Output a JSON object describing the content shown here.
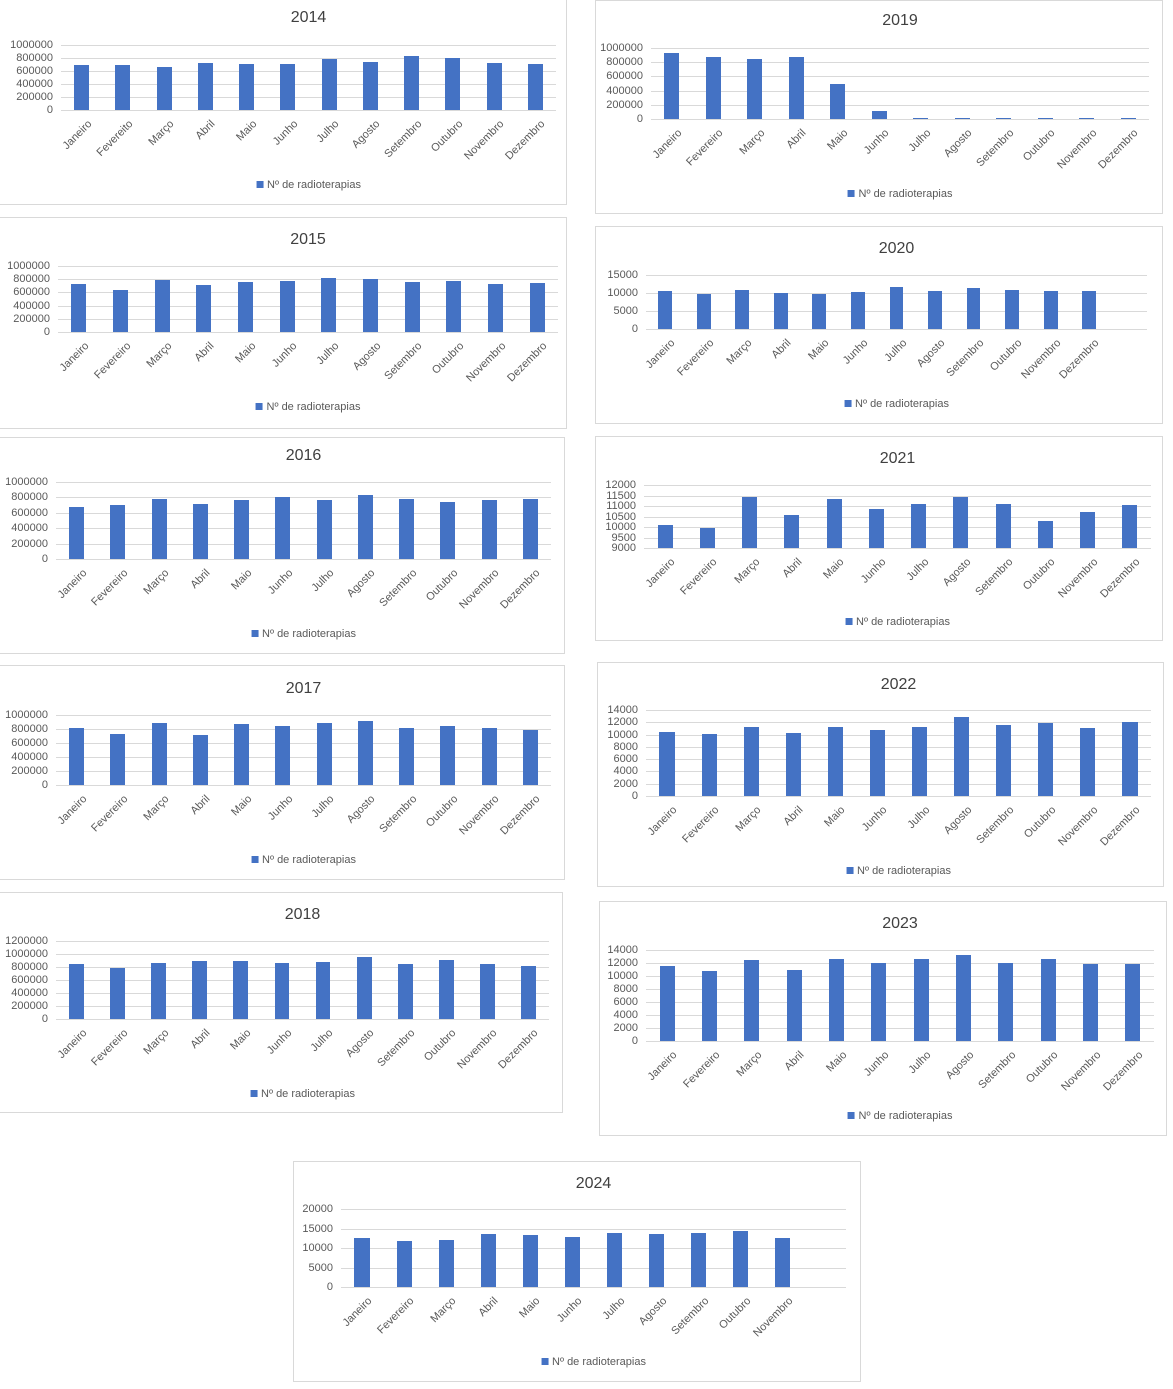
{
  "chart_data": [
    {
      "type": "bar",
      "title": "2014",
      "categories": [
        "Janeiro",
        "Fevereito",
        "Março",
        "Abril",
        "Maio",
        "Junho",
        "Julho",
        "Agosto",
        "Setembro",
        "Outubro",
        "Novembro",
        "Dezembro"
      ],
      "values": [
        700000,
        685000,
        655000,
        730000,
        715000,
        715000,
        790000,
        745000,
        835000,
        805000,
        730000,
        715000
      ],
      "ylim": [
        0,
        1000000
      ],
      "yticks": [
        "0",
        "200000",
        "400000",
        "600000",
        "800000",
        "1000000"
      ],
      "legend": "Nº de radioterapias",
      "color": "#4472c4"
    },
    {
      "type": "bar",
      "title": "2015",
      "categories": [
        "Janeiro",
        "Fevereiro",
        "Março",
        "Abril",
        "Maio",
        "Junho",
        "Julho",
        "Agosto",
        "Setembro",
        "Outubro",
        "Novembro",
        "Dezembro"
      ],
      "values": [
        730000,
        640000,
        790000,
        715000,
        760000,
        775000,
        820000,
        800000,
        760000,
        775000,
        730000,
        745000
      ],
      "ylim": [
        0,
        1000000
      ],
      "yticks": [
        "0",
        "200000",
        "400000",
        "600000",
        "800000",
        "1000000"
      ],
      "legend": "Nº de radioterapias",
      "color": "#4472c4"
    },
    {
      "type": "bar",
      "title": "2016",
      "categories": [
        "Janeiro",
        "Fevereiro",
        "Março",
        "Abril",
        "Maio",
        "Junho",
        "Julho",
        "Agosto",
        "Setembro",
        "Outubro",
        "Novembro",
        "Dezembro"
      ],
      "values": [
        680000,
        695000,
        785000,
        720000,
        770000,
        805000,
        760000,
        835000,
        785000,
        745000,
        770000,
        785000
      ],
      "ylim": [
        0,
        1000000
      ],
      "yticks": [
        "0",
        "200000",
        "400000",
        "600000",
        "800000",
        "1000000"
      ],
      "legend": "Nº de radioterapias",
      "color": "#4472c4"
    },
    {
      "type": "bar",
      "title": "2017",
      "categories": [
        "Janeiro",
        "Fevereiro",
        "Março",
        "Abril",
        "Maio",
        "Junho",
        "Julho",
        "Agosto",
        "Setembro",
        "Outubro",
        "Novembro",
        "Dezembro"
      ],
      "values": [
        810000,
        735000,
        885000,
        720000,
        865000,
        840000,
        880000,
        920000,
        820000,
        850000,
        810000,
        790000
      ],
      "ylim": [
        0,
        1000000
      ],
      "yticks": [
        "0",
        "200000",
        "400000",
        "600000",
        "800000",
        "1000000"
      ],
      "legend": "Nº de radioterapias",
      "color": "#4472c4"
    },
    {
      "type": "bar",
      "title": "2018",
      "categories": [
        "Janeiro",
        "Fevereiro",
        "Março",
        "Abril",
        "Maio",
        "Junho",
        "Julho",
        "Agosto",
        "Setembro",
        "Outubro",
        "Novembro",
        "Dezembro"
      ],
      "values": [
        845000,
        780000,
        860000,
        885000,
        885000,
        855000,
        870000,
        950000,
        840000,
        915000,
        845000,
        810000
      ],
      "ylim": [
        0,
        1200000
      ],
      "yticks": [
        "0",
        "200000",
        "400000",
        "600000",
        "800000",
        "1000000",
        "1200000"
      ],
      "legend": "Nº de radioterapias",
      "color": "#4472c4"
    },
    {
      "type": "bar",
      "title": "2019",
      "categories": [
        "Janeiro",
        "Fevereiro",
        "Março",
        "Abril",
        "Maio",
        "Junho",
        "Julho",
        "Agosto",
        "Setembro",
        "Outubro",
        "Novembro",
        "Dezembro"
      ],
      "values": [
        925000,
        880000,
        845000,
        870000,
        490000,
        110000,
        10000,
        10000,
        10000,
        10000,
        10000,
        10000
      ],
      "ylim": [
        0,
        1000000
      ],
      "yticks": [
        "0",
        "200000",
        "400000",
        "600000",
        "800000",
        "1000000"
      ],
      "legend": "Nº de radioterapias",
      "color": "#4472c4"
    },
    {
      "type": "bar",
      "title": "2020",
      "categories": [
        "Janeiro",
        "Fevereiro",
        "Março",
        "Abril",
        "Maio",
        "Junho",
        "Julho",
        "Agosto",
        "Setembro",
        "Outubro",
        "Novembro",
        "Dezembro",
        ""
      ],
      "values": [
        10500,
        9700,
        10800,
        10000,
        9800,
        10300,
        11600,
        10500,
        11400,
        10800,
        10500,
        10500,
        null
      ],
      "ylim": [
        0,
        15000
      ],
      "yticks": [
        "0",
        "5000",
        "10000",
        "15000"
      ],
      "legend": "Nº de radioterapias",
      "color": "#4472c4"
    },
    {
      "type": "bar",
      "title": "2021",
      "categories": [
        "Janeiro",
        "Fevereiro",
        "Março",
        "Abril",
        "Maio",
        "Junho",
        "Julho",
        "Agosto",
        "Setembro",
        "Outubro",
        "Novembro",
        "Dezembro"
      ],
      "values": [
        10100,
        9950,
        11430,
        10570,
        11330,
        10850,
        11090,
        11430,
        11090,
        10300,
        10720,
        11040
      ],
      "ylim": [
        9000,
        12000
      ],
      "yticks": [
        "9000",
        "9500",
        "10000",
        "10500",
        "11000",
        "11500",
        "12000"
      ],
      "legend": "Nº de radioterapias",
      "color": "#4472c4"
    },
    {
      "type": "bar",
      "title": "2022",
      "categories": [
        "Janeiro",
        "Fevereiro",
        "Março",
        "Abril",
        "Maio",
        "Junho",
        "Julho",
        "Agosto",
        "Setembro",
        "Outubro",
        "Novembro",
        "Dezembro"
      ],
      "values": [
        10400,
        10100,
        11300,
        10300,
        11300,
        10700,
        11300,
        12800,
        11600,
        11900,
        11000,
        12100
      ],
      "ylim": [
        0,
        14000
      ],
      "yticks": [
        "0",
        "2000",
        "4000",
        "6000",
        "8000",
        "10000",
        "12000",
        "14000"
      ],
      "legend": "Nº de radioterapias",
      "color": "#4472c4"
    },
    {
      "type": "bar",
      "title": "2023",
      "categories": [
        "Janeiro",
        "Fevereiro",
        "Março",
        "Abril",
        "Maio",
        "Junho",
        "Julho",
        "Agosto",
        "Setembro",
        "Outubro",
        "Novembro",
        "Dezembro"
      ],
      "values": [
        11600,
        10700,
        12400,
        10900,
        12600,
        12000,
        12600,
        13200,
        12000,
        12600,
        11800,
        11800
      ],
      "ylim": [
        0,
        14000
      ],
      "yticks": [
        "0",
        "2000",
        "4000",
        "6000",
        "8000",
        "10000",
        "12000",
        "14000"
      ],
      "legend": "Nº de radioterapias",
      "color": "#4472c4"
    },
    {
      "type": "bar",
      "title": "2024",
      "categories": [
        "Janeiro",
        "Fevereiro",
        "Março",
        "Abril",
        "Maio",
        "Junho",
        "Julho",
        "Agosto",
        "Setembro",
        "Outubro",
        "Novembro",
        ""
      ],
      "values": [
        12500,
        11800,
        12000,
        13600,
        13300,
        12800,
        13900,
        13600,
        13900,
        14400,
        12500,
        null
      ],
      "ylim": [
        0,
        20000
      ],
      "yticks": [
        "0",
        "5000",
        "10000",
        "15000",
        "20000"
      ],
      "legend": "Nº de radioterapias",
      "color": "#4472c4"
    }
  ]
}
